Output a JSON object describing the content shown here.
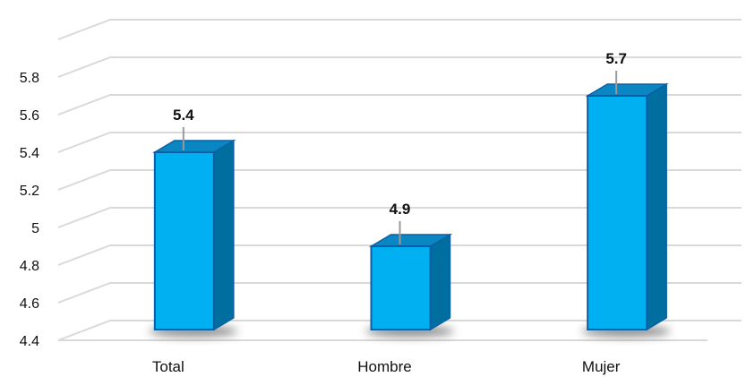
{
  "chart_data": {
    "type": "bar",
    "style": "3d-column",
    "categories": [
      "Total",
      "Hombre",
      "Mujer"
    ],
    "values": [
      5.4,
      4.9,
      5.7
    ],
    "data_labels": [
      "5.4",
      "4.9",
      "5.7"
    ],
    "yticks": [
      4.4,
      4.6,
      4.8,
      5,
      5.2,
      5.4,
      5.6,
      5.8
    ],
    "ytick_labels": [
      "4.4",
      "4.6",
      "4.8",
      "5",
      "5.2",
      "5.4",
      "5.6",
      "5.8"
    ],
    "ylim": [
      4.4,
      6.0
    ],
    "grid": true,
    "legend": "none",
    "colors": {
      "bar_front": "#00b0f0",
      "bar_side": "#006e9e",
      "bar_top": "#0a86c2",
      "bar_stroke": "#0b5fa5",
      "gridline": "#d9d9d9",
      "leader_line": "#9a9a9a",
      "shadow": "#3a3a3a"
    }
  }
}
